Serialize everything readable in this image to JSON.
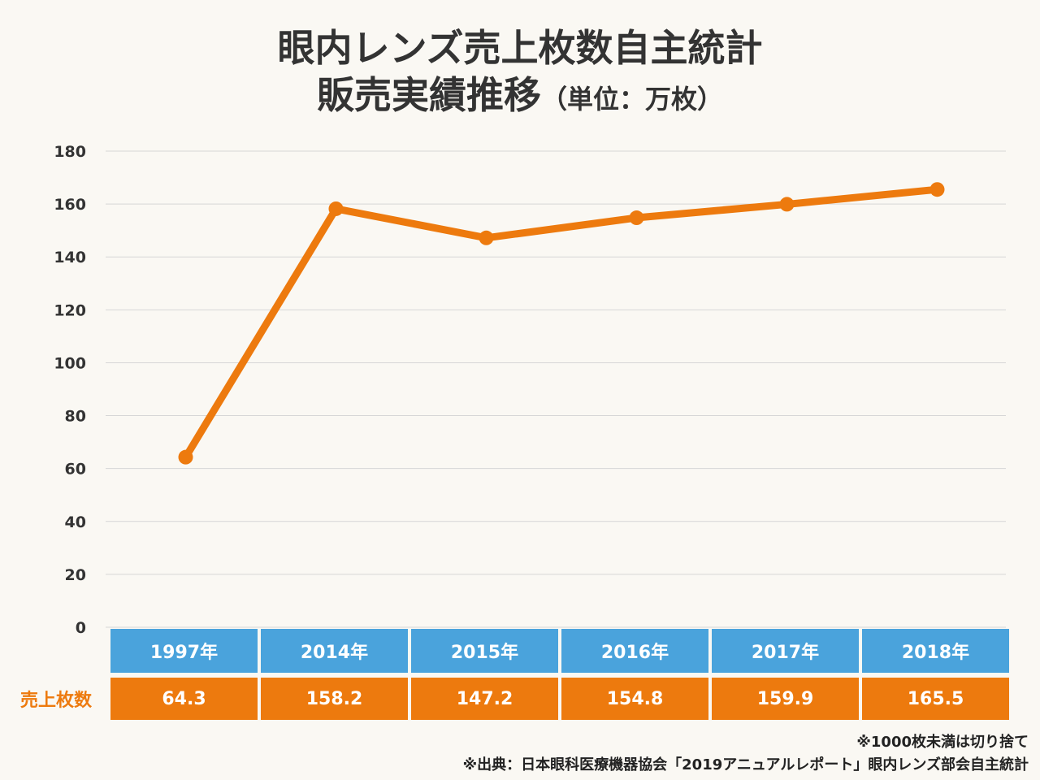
{
  "title": {
    "line1": "眼内レンズ売上枚数自主統計",
    "line2": "販売実績推移",
    "unit": "（単位：万枚）"
  },
  "chart_data": {
    "type": "line",
    "title": "眼内レンズ売上枚数自主統計 販売実績推移（単位：万枚）",
    "categories": [
      "1997年",
      "2014年",
      "2015年",
      "2016年",
      "2017年",
      "2018年"
    ],
    "series": [
      {
        "name": "売上枚数",
        "values": [
          64.3,
          158.2,
          147.2,
          154.8,
          159.9,
          165.5
        ],
        "color": "#ed7a0e"
      }
    ],
    "ylim": [
      0,
      180
    ],
    "yticks": [
      0,
      20,
      40,
      60,
      80,
      100,
      120,
      140,
      160,
      180
    ],
    "ytick_labels": [
      "0",
      "20",
      "40",
      "60",
      "80",
      "100",
      "120",
      "140",
      "160",
      "180"
    ],
    "grid": true,
    "table_row_label": "売上枚数",
    "table_values": [
      "64.3",
      "158.2",
      "147.2",
      "154.8",
      "159.9",
      "165.5"
    ],
    "colors": {
      "line": "#ed7a0e",
      "year_header": "#4aa3dc",
      "value_row": "#ed7a0e"
    }
  },
  "notes": {
    "note1": "※1000枚未満は切り捨て",
    "note2": "※出典：日本眼科医療機器協会「2019アニュアルレポート」眼内レンズ部会自主統計"
  }
}
